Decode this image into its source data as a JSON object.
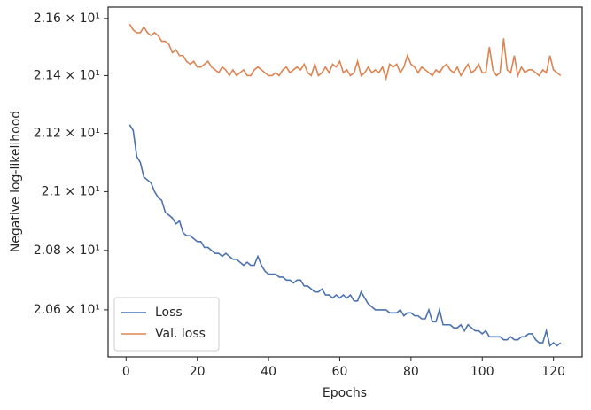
{
  "chart_data": {
    "type": "line",
    "xlabel": "Epochs",
    "ylabel": "Negative log-likelihood",
    "x": [
      1,
      2,
      3,
      4,
      5,
      6,
      7,
      8,
      9,
      10,
      11,
      12,
      13,
      14,
      15,
      16,
      17,
      18,
      19,
      20,
      21,
      22,
      23,
      24,
      25,
      26,
      27,
      28,
      29,
      30,
      31,
      32,
      33,
      34,
      35,
      36,
      37,
      38,
      39,
      40,
      41,
      42,
      43,
      44,
      45,
      46,
      47,
      48,
      49,
      50,
      51,
      52,
      53,
      54,
      55,
      56,
      57,
      58,
      59,
      60,
      61,
      62,
      63,
      64,
      65,
      66,
      67,
      68,
      69,
      70,
      71,
      72,
      73,
      74,
      75,
      76,
      77,
      78,
      79,
      80,
      81,
      82,
      83,
      84,
      85,
      86,
      87,
      88,
      89,
      90,
      91,
      92,
      93,
      94,
      95,
      96,
      97,
      98,
      99,
      100,
      101,
      102,
      103,
      104,
      105,
      106,
      107,
      108,
      109,
      110,
      111,
      112,
      113,
      114,
      115,
      116,
      117,
      118,
      119,
      120,
      121,
      122
    ],
    "series": [
      {
        "name": "Loss",
        "color": "#4c72b0",
        "values": [
          21.23,
          21.21,
          21.12,
          21.1,
          21.05,
          21.04,
          21.03,
          21.0,
          20.98,
          20.97,
          20.93,
          20.92,
          20.91,
          20.89,
          20.9,
          20.86,
          20.85,
          20.85,
          20.84,
          20.83,
          20.83,
          20.81,
          20.81,
          20.8,
          20.79,
          20.79,
          20.78,
          20.79,
          20.78,
          20.77,
          20.77,
          20.76,
          20.75,
          20.76,
          20.75,
          20.75,
          20.78,
          20.75,
          20.73,
          20.72,
          20.72,
          20.72,
          20.71,
          20.71,
          20.7,
          20.7,
          20.69,
          20.7,
          20.7,
          20.68,
          20.68,
          20.67,
          20.66,
          20.66,
          20.67,
          20.65,
          20.65,
          20.64,
          20.65,
          20.64,
          20.65,
          20.64,
          20.65,
          20.63,
          20.63,
          20.66,
          20.64,
          20.62,
          20.61,
          20.6,
          20.6,
          20.6,
          20.6,
          20.59,
          20.59,
          20.59,
          20.6,
          20.58,
          20.59,
          20.59,
          20.58,
          20.58,
          20.57,
          20.57,
          20.6,
          20.56,
          20.56,
          20.6,
          20.55,
          20.55,
          20.55,
          20.54,
          20.54,
          20.55,
          20.53,
          20.55,
          20.54,
          20.53,
          20.53,
          20.52,
          20.53,
          20.51,
          20.51,
          20.51,
          20.51,
          20.5,
          20.5,
          20.51,
          20.5,
          20.5,
          20.51,
          20.51,
          20.52,
          20.52,
          20.5,
          20.49,
          20.49,
          20.53,
          20.48,
          20.49,
          20.48,
          20.49
        ]
      },
      {
        "name": "Val. loss",
        "color": "#dd8452",
        "values": [
          21.58,
          21.56,
          21.55,
          21.55,
          21.57,
          21.55,
          21.54,
          21.55,
          21.54,
          21.52,
          21.52,
          21.51,
          21.48,
          21.49,
          21.47,
          21.47,
          21.45,
          21.44,
          21.45,
          21.43,
          21.43,
          21.44,
          21.45,
          21.43,
          21.42,
          21.41,
          21.43,
          21.42,
          21.4,
          21.42,
          21.4,
          21.41,
          21.42,
          21.4,
          21.4,
          21.42,
          21.43,
          21.42,
          21.41,
          21.4,
          21.4,
          21.41,
          21.4,
          21.42,
          21.43,
          21.41,
          21.42,
          21.43,
          21.42,
          21.44,
          21.41,
          21.4,
          21.44,
          21.4,
          21.41,
          21.43,
          21.41,
          21.44,
          21.43,
          21.45,
          21.41,
          21.42,
          21.4,
          21.41,
          21.45,
          21.4,
          21.41,
          21.43,
          21.41,
          21.42,
          21.41,
          21.43,
          21.39,
          21.44,
          21.43,
          21.44,
          21.41,
          21.43,
          21.47,
          21.44,
          21.43,
          21.41,
          21.43,
          21.42,
          21.41,
          21.4,
          21.42,
          21.41,
          21.43,
          21.44,
          21.42,
          21.41,
          21.43,
          21.4,
          21.42,
          21.44,
          21.41,
          21.42,
          21.44,
          21.41,
          21.41,
          21.5,
          21.42,
          21.4,
          21.41,
          21.53,
          21.42,
          21.41,
          21.47,
          21.4,
          21.43,
          21.41,
          21.42,
          21.42,
          21.41,
          21.4,
          21.42,
          21.41,
          21.47,
          21.42,
          21.41,
          21.4
        ]
      }
    ],
    "xlim": [
      -5.05,
      128.05
    ],
    "xticks": [
      0,
      20,
      40,
      60,
      80,
      100,
      120
    ],
    "ylim": [
      20.443,
      21.64
    ],
    "ylog": true,
    "yticks": [
      {
        "value": 20.6,
        "label": "2.06 × 10¹"
      },
      {
        "value": 20.8,
        "label": "2.08 × 10¹"
      },
      {
        "value": 21.0,
        "label": "2.1 × 10¹"
      },
      {
        "value": 21.2,
        "label": "2.12 × 10¹"
      },
      {
        "value": 21.4,
        "label": "2.14 × 10¹"
      },
      {
        "value": 21.6,
        "label": "2.16 × 10¹"
      }
    ],
    "grid": false,
    "legend": "lower left"
  }
}
